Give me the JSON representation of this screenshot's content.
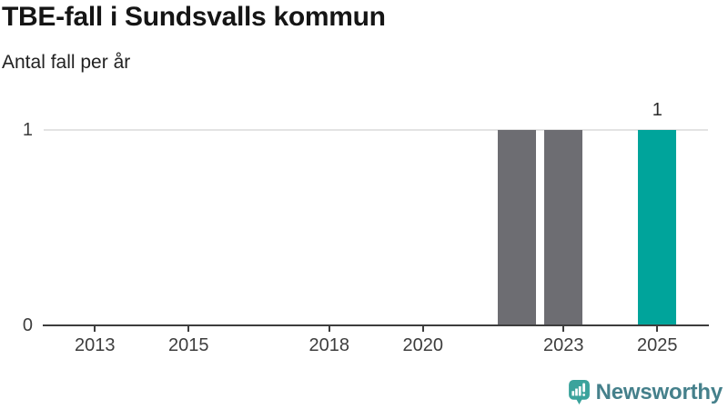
{
  "header": {
    "title": "TBE-fall i Sundsvalls kommun",
    "subtitle": "Antal fall per år"
  },
  "chart_data": {
    "type": "bar",
    "title": "TBE-fall i Sundsvalls kommun",
    "subtitle_unit_label": "Antal fall per år",
    "x": [
      2022,
      2023,
      2025
    ],
    "values": [
      1,
      1,
      1
    ],
    "bar_colors": [
      "#6d6d72",
      "#6d6d72",
      "#00a49b"
    ],
    "value_labels": [
      "",
      "",
      "1"
    ],
    "x_ticks": [
      2013,
      2015,
      2018,
      2020,
      2023,
      2025
    ],
    "y_ticks": [
      0,
      1
    ],
    "xlim": [
      2011.9,
      2026.2
    ],
    "ylim": [
      0,
      1
    ],
    "grid": "horizontal gridline at y=1 only",
    "legend": "none"
  },
  "colors": {
    "accent_bar": "#00a49b",
    "muted_bar": "#6d6d72",
    "axis": "#3d3d3d",
    "gridline": "#e3e3e3",
    "title_text": "#151515",
    "brand_text": "#45808b",
    "brand_icon": "#3ba39c"
  },
  "footer": {
    "brand": "Newsworthy"
  }
}
